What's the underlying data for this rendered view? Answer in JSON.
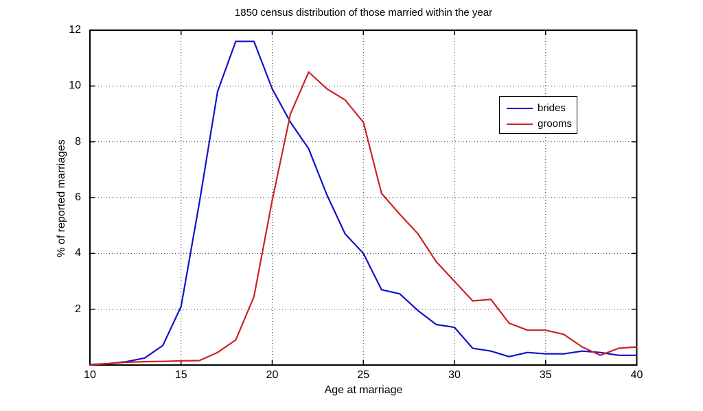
{
  "chart_data": {
    "type": "line",
    "title": "1850 census distribution of those married within the year",
    "xlabel": "Age at marriage",
    "ylabel": "% of reported marriages",
    "xlim": [
      10,
      40
    ],
    "ylim": [
      0,
      12
    ],
    "x_ticks": [
      10,
      15,
      20,
      25,
      30,
      35,
      40
    ],
    "y_ticks": [
      2,
      4,
      6,
      8,
      10,
      12
    ],
    "grid": true,
    "legend_position": "upper-right-inside",
    "axis_color": "#000000",
    "grid_color": "#333333",
    "x": [
      10,
      11,
      12,
      13,
      14,
      15,
      16,
      17,
      18,
      19,
      20,
      21,
      22,
      23,
      24,
      25,
      26,
      27,
      28,
      29,
      30,
      31,
      32,
      33,
      34,
      35,
      36,
      37,
      38,
      39,
      40
    ],
    "series": [
      {
        "name": "brides",
        "color": "#1111cc",
        "values": [
          0.02,
          0.05,
          0.12,
          0.25,
          0.7,
          2.1,
          5.8,
          9.8,
          11.6,
          11.6,
          9.9,
          8.7,
          7.75,
          6.1,
          4.7,
          4.0,
          2.7,
          2.55,
          1.95,
          1.45,
          1.35,
          0.6,
          0.5,
          0.3,
          0.45,
          0.4,
          0.4,
          0.5,
          0.45,
          0.35,
          0.35
        ]
      },
      {
        "name": "grooms",
        "color": "#cc2222",
        "values": [
          0.0,
          0.05,
          0.1,
          0.12,
          0.13,
          0.15,
          0.16,
          0.45,
          0.9,
          2.45,
          5.9,
          9.0,
          10.5,
          9.9,
          9.5,
          8.7,
          6.15,
          5.4,
          4.7,
          3.7,
          3.0,
          2.3,
          2.35,
          1.5,
          1.25,
          1.25,
          1.1,
          0.65,
          0.35,
          0.6,
          0.65
        ]
      }
    ]
  }
}
